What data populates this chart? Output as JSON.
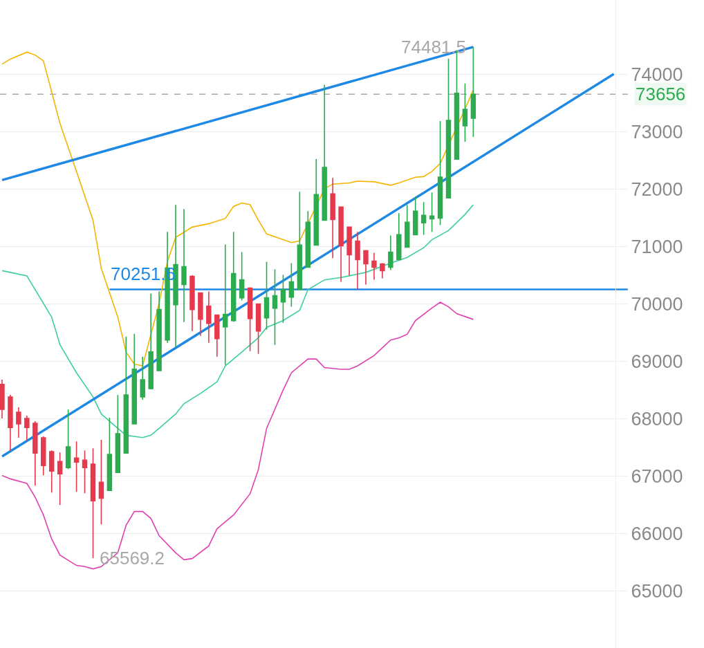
{
  "chart_data": {
    "type": "candlestick",
    "categories": [
      null,
      null,
      null,
      null,
      null,
      null,
      null,
      null,
      null,
      null,
      null,
      null,
      null,
      null,
      null,
      null,
      null,
      null,
      null,
      null,
      null,
      null,
      null,
      null,
      null,
      null,
      null,
      null,
      null,
      null,
      null,
      null,
      null,
      null,
      null,
      null,
      null,
      null,
      null,
      null,
      null,
      null,
      null,
      null,
      null,
      null,
      null,
      null,
      null,
      null,
      null,
      null,
      null,
      null,
      null,
      null,
      null,
      null,
      null,
      null,
      null,
      null,
      null,
      null,
      null,
      null,
      null,
      null,
      null,
      null,
      null,
      null,
      null,
      null,
      null
    ],
    "ylim": [
      64000,
      75300
    ],
    "yticks": [
      65000,
      66000,
      67000,
      68000,
      69000,
      70000,
      71000,
      72000,
      73000,
      74000
    ],
    "tick_labels": "y",
    "grid": "y",
    "marker": "none",
    "series": [
      {
        "ohlc": [
          [
            68596,
            68680,
            68003,
            68160
          ],
          [
            68378,
            68414,
            67435,
            67846
          ],
          [
            68112,
            68197,
            67665,
            67907
          ],
          [
            68003,
            68052,
            67617,
            67846
          ],
          [
            67919,
            67955,
            66831,
            67399
          ],
          [
            67665,
            67689,
            67012,
            67181
          ],
          [
            67423,
            67447,
            66710,
            67085
          ],
          [
            67254,
            67411,
            66492,
            67036
          ],
          [
            67145,
            68160,
            67121,
            67508
          ],
          [
            67314,
            67604,
            66722,
            67242
          ],
          [
            67278,
            67447,
            66698,
            67145
          ],
          [
            67206,
            67483,
            65569.2,
            66565
          ],
          [
            66891,
            67629,
            66155,
            66613
          ],
          [
            66746,
            68016,
            66740,
            67375
          ],
          [
            67060,
            68414,
            67050,
            67737
          ],
          [
            67399,
            69430,
            67390,
            68414
          ],
          [
            67907,
            69478,
            67900,
            68862
          ],
          [
            68378,
            69079,
            68330,
            68680
          ],
          [
            68523,
            70180,
            68510,
            69164
          ],
          [
            68838,
            70220,
            68830,
            69902
          ],
          [
            69370,
            71256,
            69321,
            70627
          ],
          [
            69986,
            71727,
            69249,
            70687
          ],
          [
            70337,
            71655,
            69684,
            70651
          ],
          [
            70482,
            70500,
            69527,
            69902
          ],
          [
            70192,
            70200,
            69442,
            69732
          ],
          [
            69962,
            70216,
            69321,
            69660
          ],
          [
            69805,
            69810,
            69079,
            69394
          ],
          [
            69599,
            71038,
            68934,
            69817
          ],
          [
            69708,
            71256,
            69690,
            70530
          ],
          [
            70107,
            70905,
            70059,
            70421
          ],
          [
            70276,
            70290,
            69176,
            69744
          ],
          [
            69998,
            70010,
            69128,
            69527
          ],
          [
            69756,
            70736,
            69551,
            70107
          ],
          [
            69926,
            70603,
            69285,
            70143
          ],
          [
            70034,
            70506,
            69672,
            70252
          ],
          [
            70119,
            70712,
            69950,
            70385
          ],
          [
            70252,
            71957,
            70240,
            71026
          ],
          [
            70639,
            71618,
            70630,
            71425
          ],
          [
            71026,
            72525,
            71020,
            71908
          ],
          [
            71461,
            73819,
            71450,
            72380
          ],
          [
            71921,
            72199,
            70796,
            71473
          ],
          [
            71691,
            71700,
            70385,
            71014
          ],
          [
            71340,
            71350,
            70494,
            70857
          ],
          [
            71098,
            71256,
            70252,
            70772
          ],
          [
            70929,
            70940,
            70337,
            70699
          ],
          [
            70748,
            70893,
            70421,
            70639
          ],
          [
            70699,
            70710,
            70445,
            70579
          ],
          [
            70639,
            71195,
            70591,
            70905
          ],
          [
            70772,
            71582,
            70760,
            71207
          ],
          [
            70990,
            71727,
            70980,
            71425
          ],
          [
            71207,
            71872,
            71200,
            71618
          ],
          [
            71413,
            71776,
            71207,
            71546
          ],
          [
            71485,
            71945,
            71256,
            71534
          ],
          [
            71497,
            73190,
            71376,
            72211
          ],
          [
            71848,
            74278,
            71840,
            73202
          ],
          [
            72525,
            74423,
            72520,
            73674
          ],
          [
            73105,
            73843,
            72827,
            73395
          ],
          [
            73238,
            74481.5,
            72912,
            73656
          ],
          null,
          null,
          null,
          null,
          null,
          null,
          null,
          null,
          null,
          null,
          null,
          null,
          null,
          null,
          null,
          null,
          null
        ],
        "colors": [
          "#e5394c",
          "#e5394c",
          "#e5394c",
          "#e5394c",
          "#e5394c",
          "#e5394c",
          "#e5394c",
          "#e5394c",
          "#2dab4f",
          "#e5394c",
          "#e5394c",
          "#e5394c",
          "#e5394c",
          "#2dab4f",
          "#2dab4f",
          "#2dab4f",
          "#2dab4f",
          "#2dab4f",
          "#2dab4f",
          "#2dab4f",
          "#2dab4f",
          "#2dab4f",
          "#2dab4f",
          "#e5394c",
          "#e5394c",
          "#e5394c",
          "#e5394c",
          "#2dab4f",
          "#2dab4f",
          "#2dab4f",
          "#e5394c",
          "#e5394c",
          "#2dab4f",
          "#2dab4f",
          "#2dab4f",
          "#2dab4f",
          "#2dab4f",
          "#2dab4f",
          "#2dab4f",
          "#2dab4f",
          "#e5394c",
          "#e5394c",
          "#e5394c",
          "#e5394c",
          "#e5394c",
          "#e5394c",
          "#e5394c",
          "#2dab4f",
          "#2dab4f",
          "#2dab4f",
          "#2dab4f",
          "#2dab4f",
          "#2dab4f",
          "#2dab4f",
          "#2dab4f",
          "#2dab4f",
          "#2dab4f",
          "#2dab4f",
          null,
          null,
          null,
          null,
          null,
          null,
          null,
          null,
          null,
          null,
          null,
          null,
          null,
          null,
          null,
          null,
          null
        ]
      },
      {
        "type": "line",
        "color": "#f5b400",
        "values": [
          74180,
          74270,
          null,
          74390,
          74340,
          74240,
          null,
          73150,
          null,
          72310,
          null,
          71460,
          70620,
          null,
          69770,
          69160,
          68950,
          68920,
          null,
          70010,
          70740,
          71160,
          null,
          71340,
          null,
          71400,
          null,
          71490,
          71700,
          71760,
          71730,
          71460,
          71220,
          null,
          71120,
          71070,
          71100,
          null,
          null,
          72010,
          72090,
          null,
          72110,
          72140,
          null,
          72130,
          null,
          72070,
          72110,
          null,
          72210,
          72220,
          72310,
          72450,
          null,
          null,
          73400,
          73730,
          null,
          null,
          null,
          null,
          null,
          null,
          null,
          null,
          null,
          null,
          null,
          null,
          null,
          null,
          null,
          null,
          null
        ]
      },
      {
        "type": "line",
        "color": "#3dcfa0",
        "values": [
          70580,
          70550,
          null,
          70490,
          70250,
          null,
          69770,
          69290,
          null,
          68800,
          null,
          68380,
          68080,
          null,
          67830,
          67710,
          null,
          67670,
          67710,
          67830,
          null,
          68080,
          68260,
          null,
          68440,
          null,
          68640,
          68920,
          null,
          69160,
          null,
          69410,
          69590,
          null,
          69710,
          null,
          69890,
          70250,
          null,
          70420,
          null,
          70460,
          70490,
          null,
          70550,
          null,
          null,
          70710,
          null,
          70810,
          null,
          70980,
          71120,
          null,
          71280,
          null,
          71560,
          71730,
          null,
          null,
          null,
          null,
          null,
          null,
          null,
          null,
          null,
          null,
          null,
          null,
          null,
          null,
          null,
          null,
          null
        ]
      },
      {
        "type": "line",
        "color": "#e040b0",
        "values": [
          67010,
          66950,
          null,
          66870,
          66630,
          66320,
          65900,
          65620,
          null,
          65440,
          65420,
          65380,
          65420,
          null,
          65660,
          66140,
          66380,
          66380,
          66260,
          65960,
          null,
          65660,
          65540,
          65560,
          null,
          65780,
          66080,
          null,
          66320,
          null,
          66690,
          67110,
          67830,
          null,
          68500,
          68800,
          null,
          69040,
          69040,
          68890,
          null,
          68860,
          68860,
          68920,
          null,
          69100,
          null,
          69370,
          69410,
          69470,
          69710,
          null,
          69930,
          70030,
          69950,
          69830,
          null,
          69730,
          null,
          null,
          null,
          null,
          null,
          null,
          null,
          null,
          null,
          null,
          null,
          null,
          null,
          null,
          null,
          null,
          null
        ]
      },
      {
        "type": "line",
        "color": "#1e88e5",
        "values": [
          72160,
          null,
          null,
          null,
          null,
          null,
          null,
          null,
          null,
          null,
          null,
          null,
          null,
          null,
          null,
          null,
          null,
          null,
          null,
          null,
          null,
          null,
          null,
          null,
          null,
          null,
          null,
          null,
          null,
          null,
          null,
          null,
          null,
          null,
          null,
          null,
          null,
          null,
          null,
          null,
          null,
          null,
          null,
          null,
          null,
          null,
          null,
          null,
          null,
          null,
          null,
          null,
          null,
          null,
          null,
          null,
          null,
          74481.5,
          null,
          null,
          null,
          null,
          null,
          null,
          null,
          null,
          null,
          null,
          null,
          null,
          null,
          null,
          null,
          null,
          null
        ]
      },
      {
        "type": "line",
        "color": "#1e88e5",
        "values": [
          67340,
          null,
          null,
          null,
          null,
          null,
          null,
          null,
          null,
          null,
          null,
          null,
          null,
          null,
          null,
          null,
          null,
          null,
          null,
          null,
          null,
          null,
          null,
          null,
          null,
          null,
          null,
          null,
          null,
          null,
          null,
          null,
          null,
          null,
          null,
          null,
          null,
          null,
          null,
          null,
          null,
          null,
          null,
          null,
          null,
          null,
          null,
          null,
          null,
          null,
          null,
          null,
          null,
          null,
          null,
          null,
          null,
          null,
          null,
          null,
          null,
          null,
          null,
          null,
          null,
          null,
          null,
          null,
          null,
          null,
          null,
          null,
          null,
          null,
          74010
        ]
      }
    ],
    "ref_lines": [
      {
        "axis": "y",
        "value": 70251.6,
        "label": "70251.6",
        "color": "#1e88e5",
        "line_style": "solid"
      },
      {
        "axis": "y",
        "value": 73656,
        "label": "73656",
        "color": "#a8a8a8",
        "line_style": "dashed"
      }
    ],
    "annotations": [
      "74481.5",
      "65569.2"
    ]
  }
}
